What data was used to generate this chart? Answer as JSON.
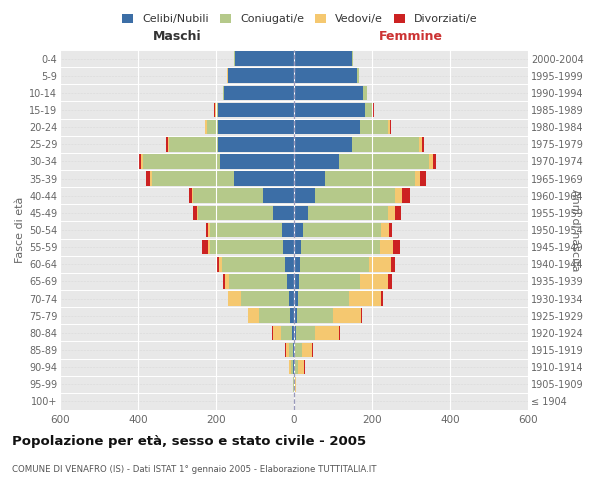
{
  "age_groups": [
    "100+",
    "95-99",
    "90-94",
    "85-89",
    "80-84",
    "75-79",
    "70-74",
    "65-69",
    "60-64",
    "55-59",
    "50-54",
    "45-49",
    "40-44",
    "35-39",
    "30-34",
    "25-29",
    "20-24",
    "15-19",
    "10-14",
    "5-9",
    "0-4"
  ],
  "birth_years": [
    "≤ 1904",
    "1905-1909",
    "1910-1914",
    "1915-1919",
    "1920-1924",
    "1925-1929",
    "1930-1934",
    "1935-1939",
    "1940-1944",
    "1945-1949",
    "1950-1954",
    "1955-1959",
    "1960-1964",
    "1965-1969",
    "1970-1974",
    "1975-1979",
    "1980-1984",
    "1985-1989",
    "1990-1994",
    "1995-1999",
    "2000-2004"
  ],
  "male_celibi": [
    1,
    1,
    2,
    3,
    5,
    10,
    12,
    18,
    22,
    28,
    30,
    55,
    80,
    155,
    190,
    195,
    195,
    195,
    180,
    168,
    152
  ],
  "male_coniugati": [
    0,
    1,
    5,
    10,
    28,
    80,
    125,
    148,
    162,
    188,
    185,
    192,
    180,
    210,
    198,
    125,
    28,
    5,
    2,
    2,
    2
  ],
  "male_vedovi": [
    0,
    0,
    5,
    8,
    22,
    28,
    32,
    10,
    8,
    5,
    5,
    3,
    2,
    4,
    4,
    4,
    4,
    2,
    1,
    1,
    0
  ],
  "male_divorziati": [
    0,
    0,
    0,
    3,
    2,
    0,
    0,
    5,
    8,
    15,
    5,
    8,
    8,
    10,
    5,
    5,
    2,
    2,
    0,
    0,
    0
  ],
  "female_nubili": [
    0,
    0,
    2,
    2,
    5,
    8,
    10,
    12,
    15,
    18,
    22,
    35,
    55,
    80,
    115,
    148,
    170,
    182,
    178,
    162,
    148
  ],
  "female_coniugate": [
    0,
    2,
    8,
    18,
    50,
    92,
    132,
    158,
    178,
    202,
    200,
    205,
    205,
    230,
    232,
    172,
    72,
    18,
    8,
    4,
    2
  ],
  "female_vedove": [
    0,
    2,
    15,
    25,
    60,
    72,
    82,
    72,
    55,
    35,
    22,
    20,
    18,
    14,
    10,
    8,
    5,
    2,
    1,
    0,
    0
  ],
  "female_divorziate": [
    0,
    0,
    2,
    3,
    3,
    2,
    5,
    8,
    10,
    18,
    8,
    15,
    20,
    15,
    8,
    5,
    2,
    2,
    0,
    0,
    0
  ],
  "color_celibi": "#3c6ea6",
  "color_coniugati": "#b5c98a",
  "color_vedovi": "#f5c870",
  "color_divorziati": "#cc2222",
  "title": "Popolazione per età, sesso e stato civile - 2005",
  "subtitle": "COMUNE DI VENAFRO (IS) - Dati ISTAT 1° gennaio 2005 - Elaborazione TUTTITALIA.IT",
  "legend_labels": [
    "Celibi/Nubili",
    "Coniugati/e",
    "Vedovi/e",
    "Divorziati/e"
  ],
  "xlim": 600,
  "plot_bg": "#e8e8e8",
  "fig_bg": "#ffffff",
  "grid_color": "#ffffff",
  "maschi_label": "Maschi",
  "femmine_label": "Femmine",
  "ylabel_left": "Fasce di età",
  "ylabel_right": "Anni di nascita"
}
